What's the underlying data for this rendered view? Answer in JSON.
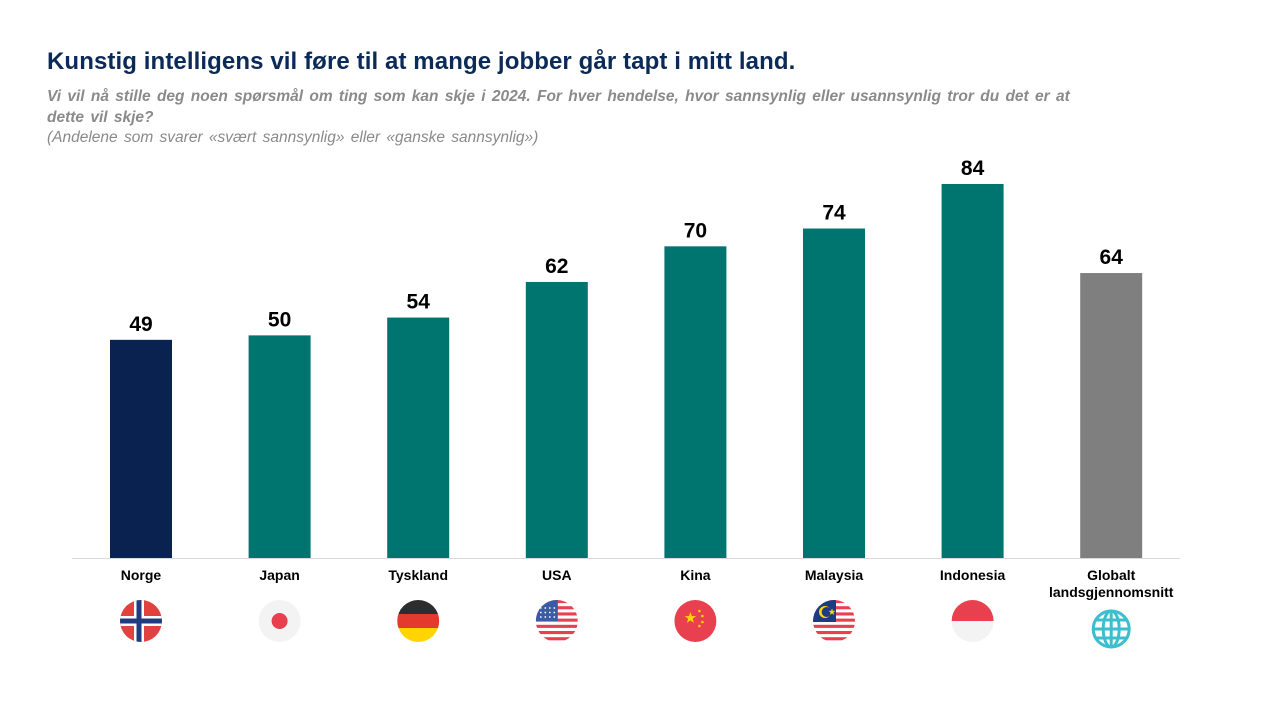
{
  "title": "Kunstig intelligens vil føre til at mange jobber går tapt i mitt land.",
  "subtitle": "Vi vil nå stille deg noen spørsmål om ting som kan skje i 2024. For hver hendelse, hvor sannsynlig eller usannsynlig tror du det er at dette vil skje?",
  "note": "(Andelene som svarer «svært sannsynlig» eller «ganske sannsynlig»)",
  "colors": {
    "highlight": "#0a2250",
    "default": "#00746f",
    "global": "#7f7f7f",
    "axis": "#d9d9d9"
  },
  "chart_data": {
    "type": "bar",
    "title": "Kunstig intelligens vil føre til at mange jobber går tapt i mitt land.",
    "xlabel": "",
    "ylabel": "",
    "ylim": [
      0,
      84
    ],
    "grid": false,
    "categories": [
      "Norge",
      "Japan",
      "Tyskland",
      "USA",
      "Kina",
      "Malaysia",
      "Indonesia",
      "Globalt landsgjennomsnitt"
    ],
    "category_lines": [
      [
        "Norge"
      ],
      [
        "Japan"
      ],
      [
        "Tyskland"
      ],
      [
        "USA"
      ],
      [
        "Kina"
      ],
      [
        "Malaysia"
      ],
      [
        "Indonesia"
      ],
      [
        "Globalt",
        "landsgjennomsnitt"
      ]
    ],
    "values": [
      49,
      50,
      54,
      62,
      70,
      74,
      84,
      64
    ],
    "bar_color_keys": [
      "highlight",
      "default",
      "default",
      "default",
      "default",
      "default",
      "default",
      "global"
    ],
    "icons": [
      "norway-flag-icon",
      "japan-flag-icon",
      "germany-flag-icon",
      "usa-flag-icon",
      "china-flag-icon",
      "malaysia-flag-icon",
      "indonesia-flag-icon",
      "globe-icon"
    ]
  }
}
